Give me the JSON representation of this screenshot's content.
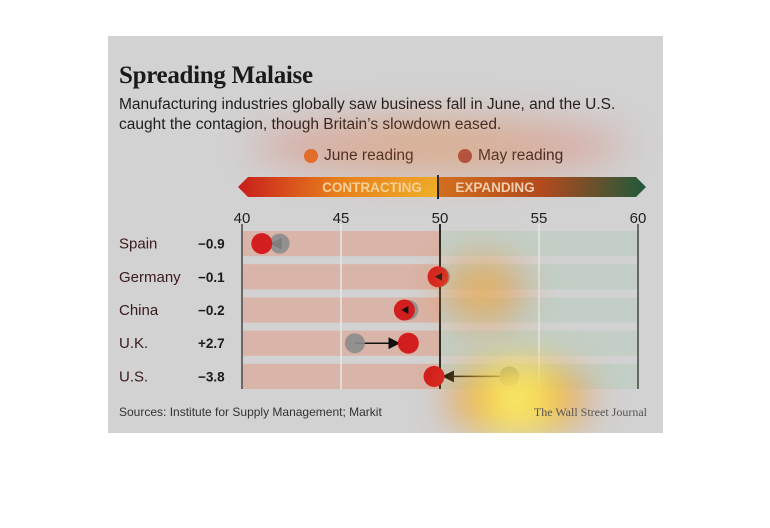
{
  "title": "Spreading Malaise",
  "subtitle": "Manufacturing industries globally saw business fall in June, and the U.S. caught the contagion, though Britain’s slowdown eased.",
  "legend": {
    "june_label": "June reading",
    "may_label": "May reading"
  },
  "banner": {
    "contracting_label": "CONTRACTING",
    "expanding_label": "EXPANDING"
  },
  "source": "Sources: Institute for Supply Management; Markit",
  "credit": "The Wall Street Journal",
  "colors": {
    "june": "#d21e1e",
    "may": "#8c8c8c",
    "contracting": "#d4901c",
    "expanding": "#2f6b4b"
  },
  "chart_data": {
    "type": "scatter",
    "x_ticks": [
      "40",
      "45",
      "50",
      "55",
      "60"
    ],
    "xlim": [
      40,
      60
    ],
    "threshold": 50,
    "series": [
      {
        "name": "June reading",
        "values": [
          41.0,
          49.9,
          48.2,
          48.4,
          49.7
        ]
      },
      {
        "name": "May reading",
        "values": [
          41.9,
          50.0,
          48.4,
          45.7,
          53.5
        ]
      }
    ],
    "categories": [
      "Spain",
      "Germany",
      "China",
      "U.K.",
      "U.S."
    ],
    "changes": [
      "−0.9",
      "−0.1",
      "−0.2",
      "+2.7",
      "−3.8"
    ]
  }
}
